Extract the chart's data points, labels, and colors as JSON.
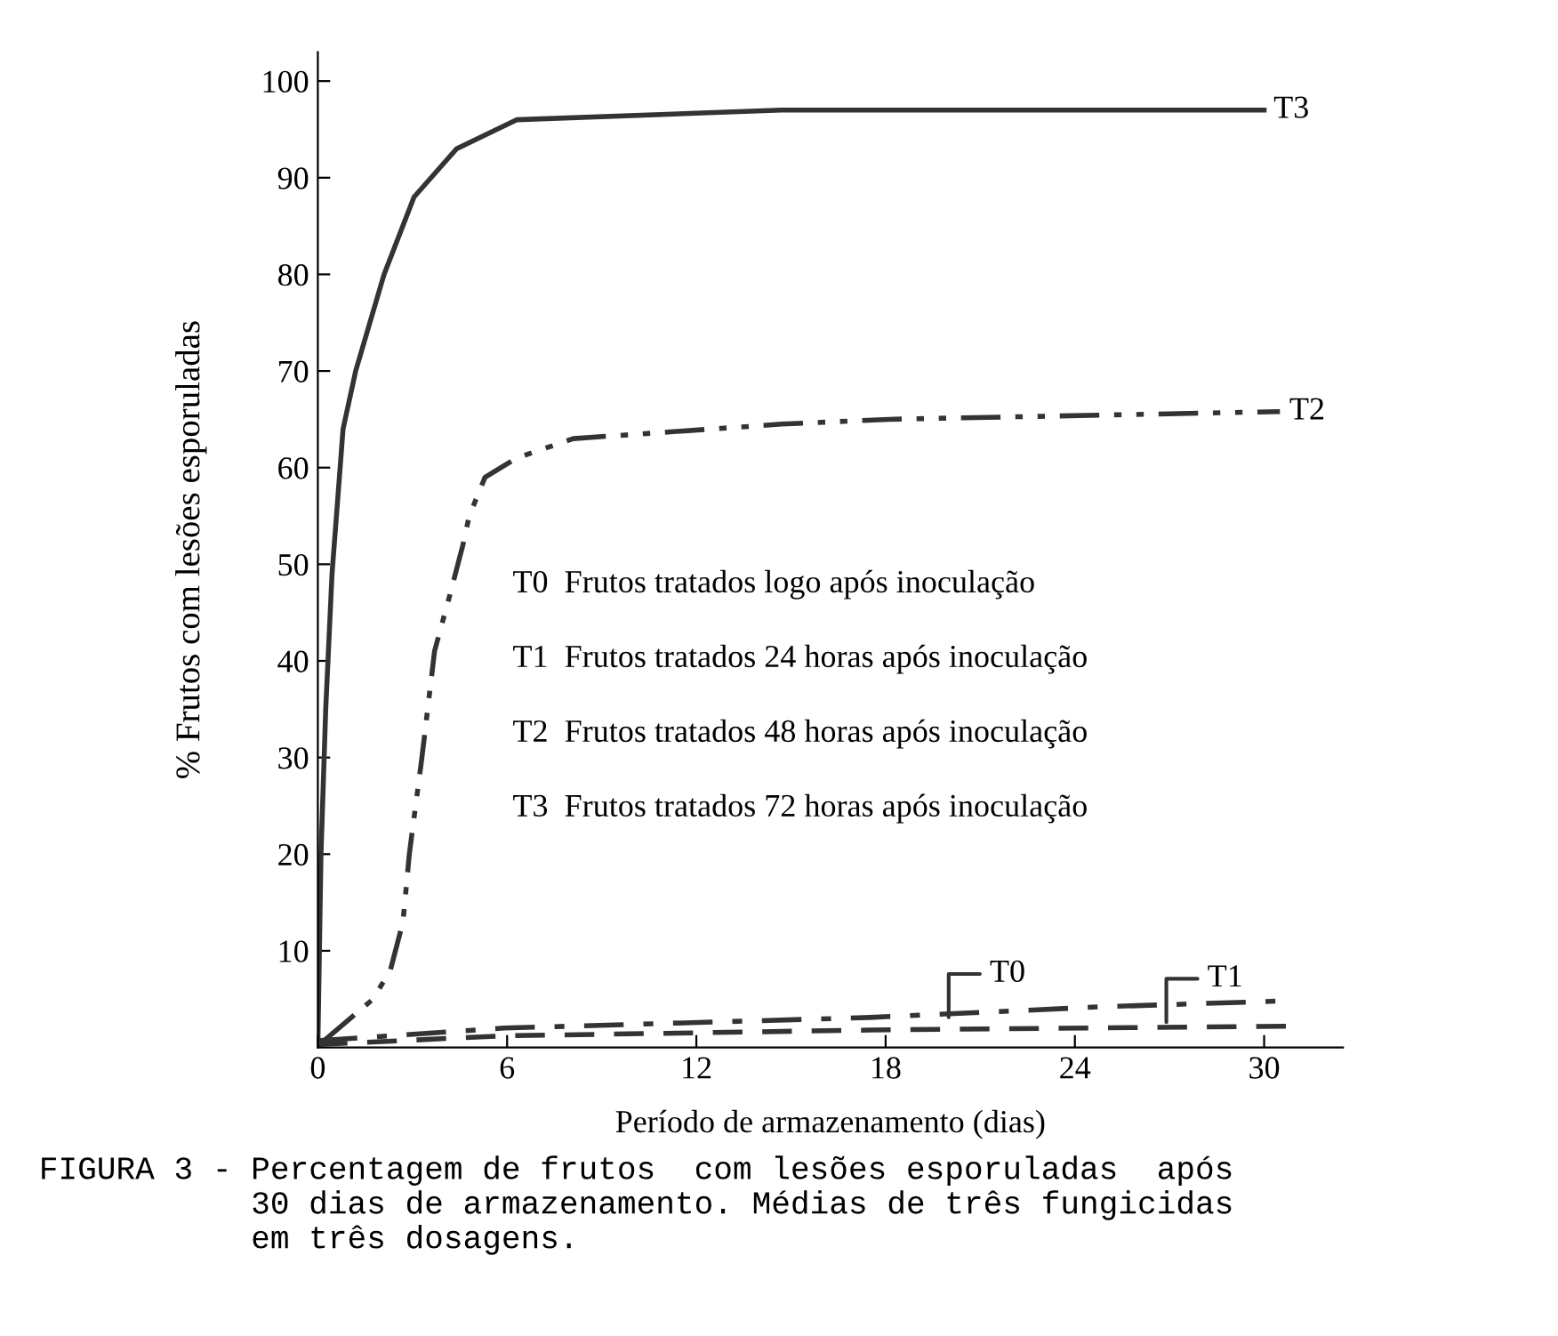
{
  "chart_data": {
    "type": "line",
    "xlabel": "Período de armazenamento (dias)",
    "ylabel": "% Frutos com lesões esporuladas",
    "xlim": [
      0,
      32.5
    ],
    "ylim": [
      0,
      103
    ],
    "xticks": [
      0,
      6,
      12,
      18,
      24,
      30
    ],
    "yticks": [
      10,
      20,
      30,
      40,
      50,
      60,
      70,
      80,
      90,
      100
    ],
    "grid": false,
    "marker": "none",
    "series": [
      {
        "name": "T3",
        "color": "#333333",
        "line_style": "solid",
        "x": [
          0,
          0.1,
          0.25,
          0.45,
          0.8,
          1.2,
          2.1,
          3.05,
          4.4,
          6.3,
          14.7,
          30
        ],
        "values": [
          0,
          20,
          35,
          49,
          64,
          70,
          80,
          88,
          93,
          96,
          97,
          97
        ]
      },
      {
        "name": "T2",
        "color": "#333333",
        "line_style": "dashdotdot",
        "x": [
          0.2,
          1.75,
          2.3,
          2.7,
          2.9,
          3.3,
          3.7,
          4.2,
          4.6,
          4.8,
          5.3,
          6.3,
          8.1,
          14.7,
          18.1,
          30.5
        ],
        "values": [
          0.7,
          5,
          8,
          13,
          20,
          30,
          41,
          47,
          52,
          55,
          59,
          61,
          63,
          64.5,
          65,
          65.8
        ]
      },
      {
        "color": "#333333",
        "line_style": "dashdot",
        "x": [
          0,
          5.9,
          17.5,
          24.8,
          30.5
        ],
        "values": [
          0.7,
          2,
          3.1,
          4.2,
          4.8
        ]
      },
      {
        "color": "#333333",
        "line_style": "dashed",
        "x": [
          0,
          5.9,
          17.5,
          30.7
        ],
        "values": [
          0.3,
          1.2,
          1.8,
          2.2
        ]
      }
    ],
    "annotations": [
      "T0  Frutos tratados logo após inoculação",
      "T1  Frutos tratados 24 horas após inoculação",
      "T2  Frutos tratados 48 horas após inoculação",
      "T3  Frutos tratados 72 horas após inoculação",
      {
        "text": "T0",
        "x": 20,
        "y": 2.6
      },
      {
        "text": "T1",
        "x": 26.9,
        "y": 2.1
      },
      "FIGURA 3 - Percentagem de frutos  com lesões esporuladas  após\n           30 dias de armazenamento. Médias de três fungicidas\n           em três dosagens."
    ]
  }
}
